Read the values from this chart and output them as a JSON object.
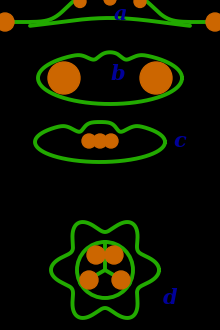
{
  "background_color": "#000000",
  "green_color": "#22aa00",
  "orange_color": "#cc6600",
  "red_color": "#cc2200",
  "label_color": "#000099",
  "label_a": "a",
  "label_b": "b",
  "label_c": "c",
  "label_d": "d",
  "label_fontsize": 15,
  "fig_width": 2.2,
  "fig_height": 3.3,
  "dpi": 100
}
